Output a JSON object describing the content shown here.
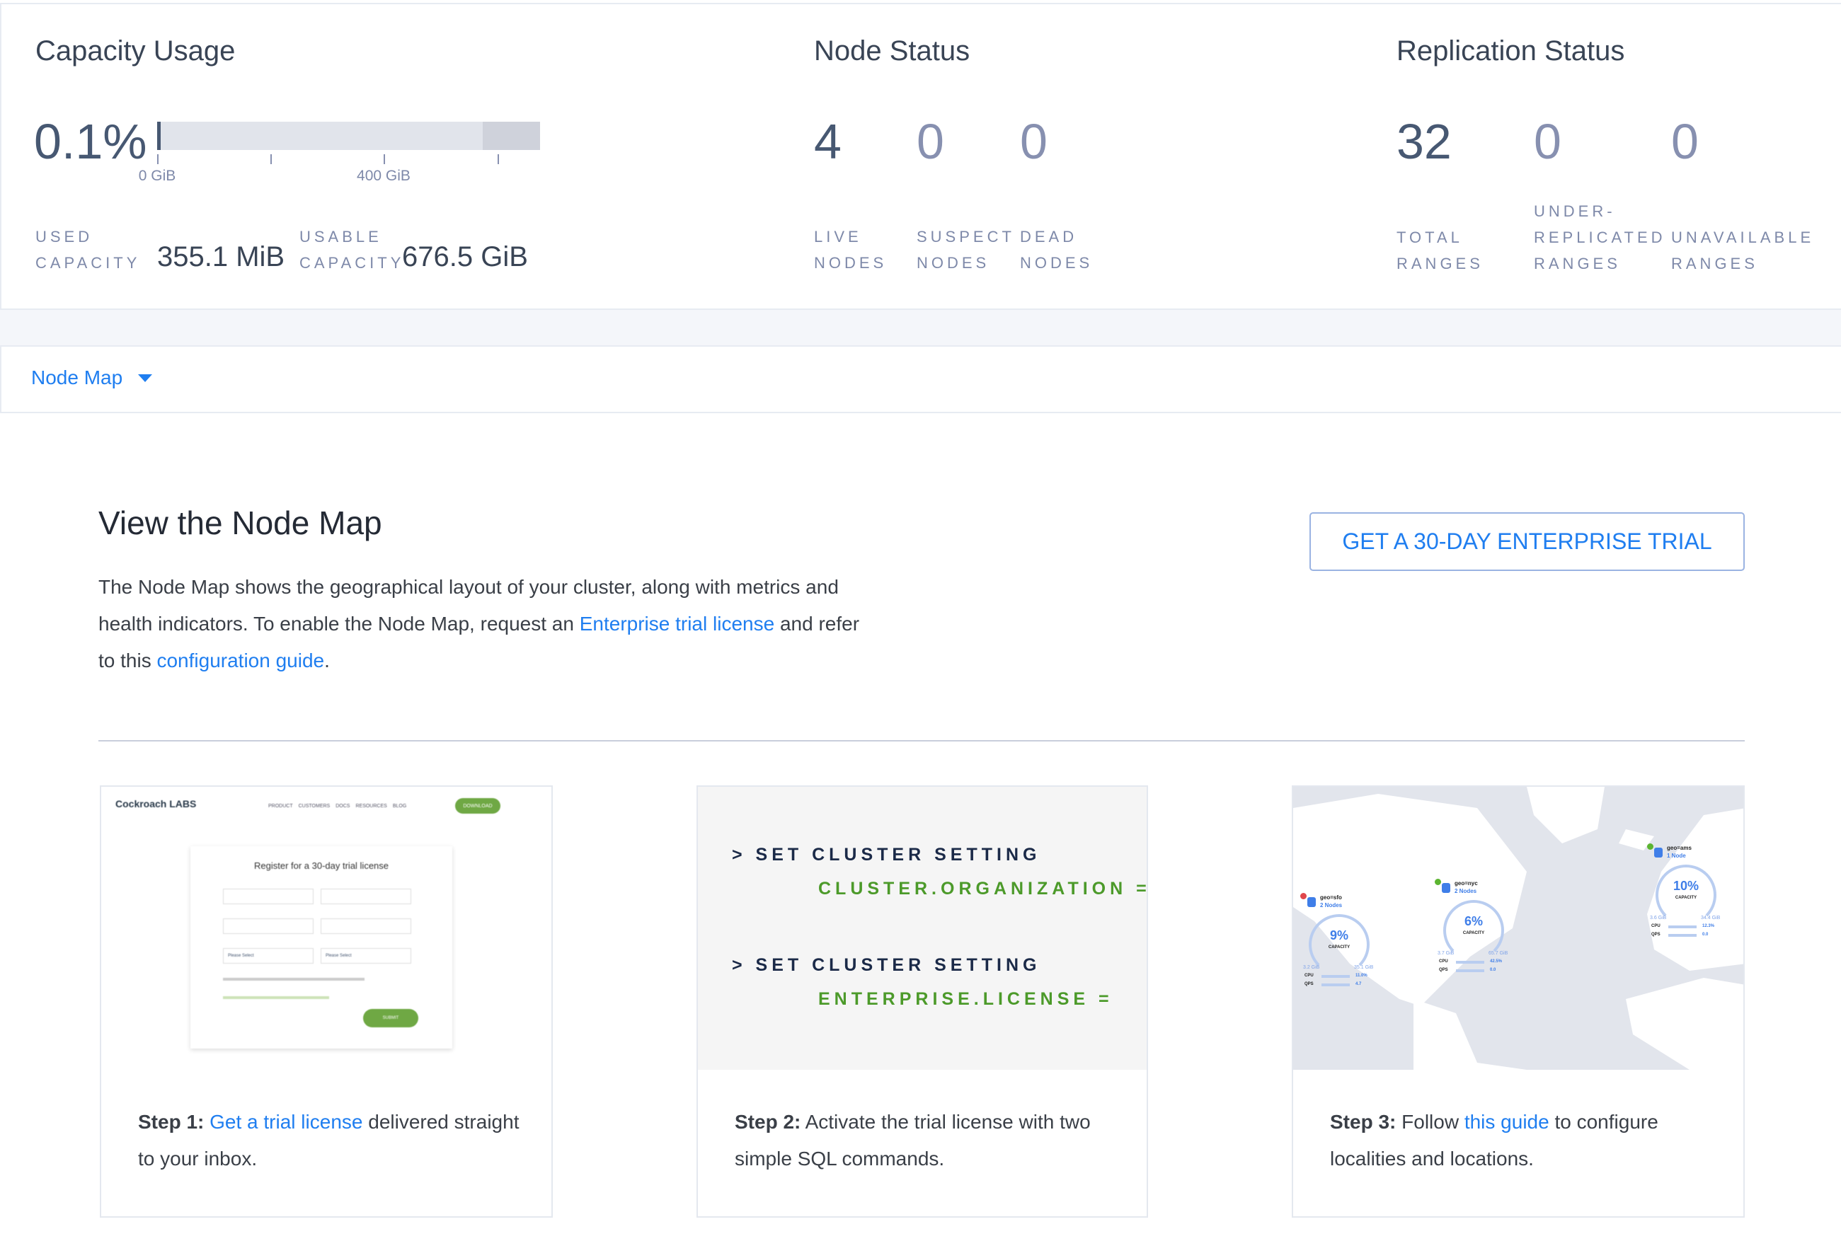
{
  "capacity": {
    "title": "Capacity Usage",
    "percent": "0.1%",
    "bar_fraction_used": 0.001,
    "bar_fraction_unusable_start": 0.85,
    "ticks": [
      "0 GiB",
      "400 GiB"
    ],
    "used_label": [
      "USED",
      "CAPACITY"
    ],
    "used_value": "355.1 MiB",
    "usable_label": [
      "USABLE",
      "CAPACITY"
    ],
    "usable_value": "676.5 GiB"
  },
  "node_status": {
    "title": "Node Status",
    "stats": [
      {
        "value": "4",
        "label": [
          "LIVE",
          "NODES"
        ]
      },
      {
        "value": "0",
        "label": [
          "SUSPECT",
          "NODES"
        ]
      },
      {
        "value": "0",
        "label": [
          "DEAD",
          "NODES"
        ]
      }
    ]
  },
  "replication_status": {
    "title": "Replication Status",
    "stats": [
      {
        "value": "32",
        "label": [
          "",
          "TOTAL",
          "RANGES"
        ]
      },
      {
        "value": "0",
        "label": [
          "UNDER-",
          "REPLICATED",
          "RANGES"
        ]
      },
      {
        "value": "0",
        "label": [
          "",
          "UNAVAILABLE",
          "RANGES"
        ]
      }
    ]
  },
  "nav": {
    "dropdown_label": "Node Map",
    "chevron_icon": "caret-down-icon"
  },
  "main": {
    "title": "View the Node Map",
    "para_1": "The Node Map shows the geographical layout of your cluster, along with metrics and health indicators. To enable the Node Map, request an ",
    "para_link_1": "Enterprise trial license",
    "para_2": " and refer to this ",
    "para_link_2": "configuration guide",
    "para_3": ".",
    "trial_button": "GET A 30-DAY ENTERPRISE TRIAL"
  },
  "steps": [
    {
      "bold": "Step 1:",
      "link": "Get a trial license",
      "text": " delivered straight to your inbox."
    },
    {
      "bold": "Step 2:",
      "text": " Activate the trial license with two simple SQL commands."
    },
    {
      "bold": "Step 3:",
      "pre": " Follow ",
      "link": "this guide",
      "text": " to configure localities and locations."
    }
  ],
  "sql": [
    {
      "cmd": "> SET CLUSTER SETTING",
      "arg": "CLUSTER.ORGANIZATION ="
    },
    {
      "cmd": "> SET CLUSTER SETTING",
      "arg": "ENTERPRISE.LICENSE ="
    }
  ],
  "thumb_register": {
    "logo": "Cockroach LABS",
    "nav": [
      "PRODUCT",
      "CUSTOMERS",
      "DOCS",
      "RESOURCES",
      "BLOG"
    ],
    "download": "DOWNLOAD",
    "form_title": "Register for a 30-day trial license",
    "select_placeholder": "Please Select",
    "submit": "SUBMIT"
  },
  "thumb_map": {
    "regions": [
      {
        "name": "geo=sfo",
        "nodes": "2 Nodes",
        "capacity": "9%",
        "cap_label": "CAPACITY",
        "used": "3.2 GiB",
        "total": "35.1 GiB",
        "cpu": "11.0%",
        "qps": "4.7",
        "status": "alert"
      },
      {
        "name": "geo=nyc",
        "nodes": "2 Nodes",
        "capacity": "6%",
        "cap_label": "CAPACITY",
        "used": "3.7 GiB",
        "total": "65.7 GiB",
        "cpu": "42.5%",
        "qps": "0.0",
        "status": "ok"
      },
      {
        "name": "geo=ams",
        "nodes": "1 Node",
        "capacity": "10%",
        "cap_label": "CAPACITY",
        "used": "3.6 GiB",
        "total": "34.4 GiB",
        "cpu": "12.3%",
        "qps": "0.0",
        "status": "ok"
      }
    ],
    "cpu_label": "CPU",
    "qps_label": "QPS"
  },
  "colors": {
    "link": "#1f7ef0",
    "sql_green": "#4c9a2a",
    "text_dark": "#475872",
    "text_muted": "#8790b0",
    "bar": "#e1e4eb",
    "bar_dark": "#cfd2db"
  }
}
